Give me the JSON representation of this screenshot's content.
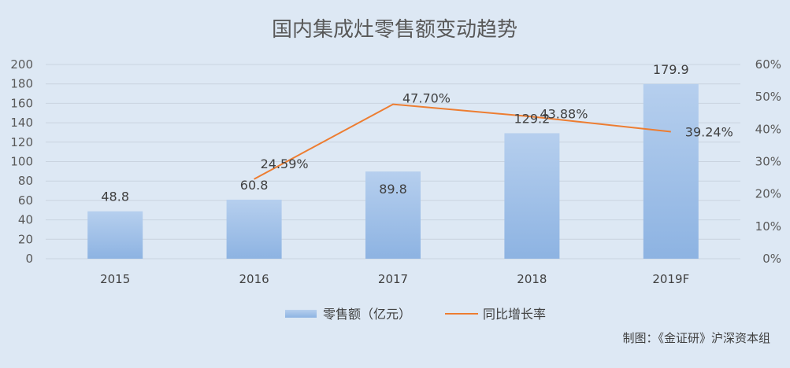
{
  "chart_data": {
    "type": "bar",
    "title": "国内集成灶零售额变动趋势",
    "categories": [
      "2015",
      "2016",
      "2017",
      "2018",
      "2019F"
    ],
    "series": [
      {
        "name": "零售额（亿元）",
        "type": "bar",
        "axis": "left",
        "values": [
          48.8,
          60.8,
          89.8,
          129.2,
          179.9
        ],
        "labels": [
          "48.8",
          "60.8",
          "89.8",
          "129.2",
          "179.9"
        ],
        "color": "#9dbde6"
      },
      {
        "name": "同比增长率",
        "type": "line",
        "axis": "right",
        "values": [
          null,
          24.59,
          47.7,
          43.88,
          39.24
        ],
        "labels": [
          "",
          "24.59%",
          "47.70%",
          "43.88%",
          "39.24%"
        ],
        "color": "#ed7d31"
      }
    ],
    "y_left": {
      "ylim": [
        0,
        200
      ],
      "ticks": [
        "0",
        "20",
        "40",
        "60",
        "80",
        "100",
        "120",
        "140",
        "160",
        "180",
        "200"
      ]
    },
    "y_right": {
      "ylim": [
        0,
        60
      ],
      "ticks": [
        "0%",
        "10%",
        "20%",
        "30%",
        "40%",
        "50%",
        "60%"
      ]
    },
    "grid": true,
    "legend_position": "bottom-center",
    "credit": "制图：《金证研》沪深资本组"
  }
}
